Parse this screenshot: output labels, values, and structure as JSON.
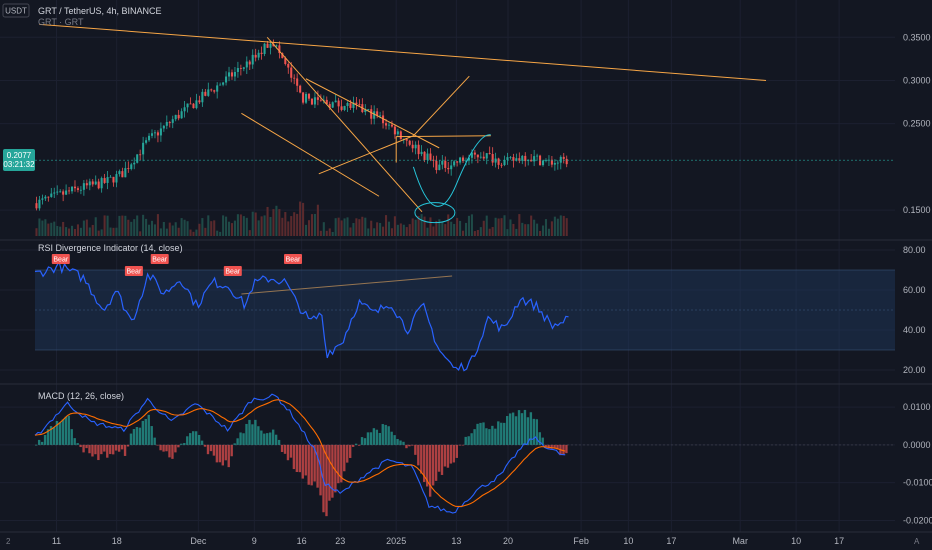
{
  "header": {
    "currency": "USDT",
    "symbol_line": "GRT / TetherUS, 4h, BINANCE",
    "sub_line": "GRT · GRT"
  },
  "price_tag": {
    "price": "0.2077",
    "countdown": "03:21:32"
  },
  "corner": {
    "left": "2",
    "right": "A"
  },
  "colors": {
    "background": "#131722",
    "up": "#26a69a",
    "down": "#ef5350",
    "rsi_line": "#2962ff",
    "band_fill": "#1e3a5f",
    "trendline": "#f7a646",
    "drawing": "#26c6da",
    "macd_line": "#2962ff",
    "signal_line": "#ff6d00"
  },
  "chart_data": [
    {
      "type": "candlestick",
      "title": "GRT / TetherUS, 4h, BINANCE",
      "ylim": [
        0.12,
        0.37
      ],
      "yticks": [
        "0.3500",
        "0.3000",
        "0.2500",
        "0.1500"
      ],
      "ytick_values": [
        0.35,
        0.3,
        0.25,
        0.15
      ],
      "x_labels": [
        "11",
        "18",
        "Dec",
        "9",
        "16",
        "23",
        "2025",
        "13",
        "20",
        "Feb",
        "10",
        "17",
        "Mar",
        "10",
        "17"
      ],
      "x_label_positions": [
        0.025,
        0.095,
        0.19,
        0.255,
        0.31,
        0.355,
        0.42,
        0.49,
        0.55,
        0.635,
        0.69,
        0.74,
        0.82,
        0.885,
        0.935
      ],
      "last_price": 0.2077,
      "price_anchors": [
        [
          0,
          0.158
        ],
        [
          0.02,
          0.165
        ],
        [
          0.05,
          0.175
        ],
        [
          0.08,
          0.182
        ],
        [
          0.1,
          0.192
        ],
        [
          0.13,
          0.23
        ],
        [
          0.16,
          0.255
        ],
        [
          0.19,
          0.278
        ],
        [
          0.22,
          0.3
        ],
        [
          0.24,
          0.315
        ],
        [
          0.26,
          0.33
        ],
        [
          0.275,
          0.348
        ],
        [
          0.29,
          0.32
        ],
        [
          0.31,
          0.28
        ],
        [
          0.34,
          0.274
        ],
        [
          0.37,
          0.27
        ],
        [
          0.4,
          0.258
        ],
        [
          0.44,
          0.225
        ],
        [
          0.47,
          0.2
        ],
        [
          0.5,
          0.208
        ],
        [
          0.52,
          0.215
        ],
        [
          0.55,
          0.205
        ],
        [
          0.57,
          0.213
        ],
        [
          0.6,
          0.205
        ],
        [
          0.62,
          0.207
        ]
      ],
      "candle_count": 180
    },
    {
      "type": "line",
      "title": "RSI Divergence Indicator (14, close)",
      "ylim": [
        15,
        82
      ],
      "yticks": [
        "80.00",
        "60.00",
        "40.00",
        "20.00"
      ],
      "ytick_values": [
        80,
        60,
        40,
        20
      ],
      "band": [
        30,
        70
      ],
      "mid": 50,
      "rsi_anchors": [
        [
          0,
          68
        ],
        [
          0.03,
          72
        ],
        [
          0.06,
          66
        ],
        [
          0.085,
          50
        ],
        [
          0.1,
          60
        ],
        [
          0.12,
          44
        ],
        [
          0.14,
          68
        ],
        [
          0.16,
          58
        ],
        [
          0.18,
          66
        ],
        [
          0.2,
          52
        ],
        [
          0.22,
          64
        ],
        [
          0.24,
          62
        ],
        [
          0.26,
          52
        ],
        [
          0.27,
          63
        ],
        [
          0.29,
          66
        ],
        [
          0.31,
          64
        ],
        [
          0.32,
          56
        ],
        [
          0.34,
          44
        ],
        [
          0.355,
          48
        ],
        [
          0.36,
          28
        ],
        [
          0.38,
          34
        ],
        [
          0.4,
          54
        ],
        [
          0.42,
          48
        ],
        [
          0.44,
          54
        ],
        [
          0.46,
          40
        ],
        [
          0.48,
          52
        ],
        [
          0.5,
          30
        ],
        [
          0.52,
          20
        ],
        [
          0.54,
          24
        ],
        [
          0.56,
          46
        ],
        [
          0.58,
          40
        ],
        [
          0.6,
          56
        ],
        [
          0.62,
          52
        ],
        [
          0.64,
          42
        ],
        [
          0.66,
          45
        ]
      ],
      "divergence_labels": [
        "Bear",
        "Bear",
        "Bear",
        "Bear",
        "Bear"
      ],
      "divergence_x": [
        0.03,
        0.115,
        0.145,
        0.23,
        0.3
      ]
    },
    {
      "type": "bar+line",
      "title": "MACD (12, 26, close)",
      "ylim": [
        -0.022,
        0.014
      ],
      "yticks": [
        "0.0100",
        "0.0000",
        "-0.0100",
        "-0.0200"
      ],
      "ytick_values": [
        0.01,
        0.0,
        -0.01,
        -0.02
      ],
      "macd_anchors": [
        [
          0,
          0.002
        ],
        [
          0.04,
          0.011
        ],
        [
          0.07,
          0.006
        ],
        [
          0.11,
          0.004
        ],
        [
          0.14,
          0.012
        ],
        [
          0.17,
          0.006
        ],
        [
          0.2,
          0.011
        ],
        [
          0.24,
          0.004
        ],
        [
          0.27,
          0.012
        ],
        [
          0.3,
          0.013
        ],
        [
          0.32,
          0.008
        ],
        [
          0.35,
          -0.002
        ],
        [
          0.36,
          -0.01
        ],
        [
          0.38,
          -0.013
        ],
        [
          0.41,
          -0.008
        ],
        [
          0.44,
          -0.004
        ],
        [
          0.47,
          -0.006
        ],
        [
          0.49,
          -0.016
        ],
        [
          0.52,
          -0.018
        ],
        [
          0.55,
          -0.012
        ],
        [
          0.58,
          -0.008
        ],
        [
          0.6,
          -0.002
        ],
        [
          0.62,
          0.002
        ],
        [
          0.64,
          -0.001
        ],
        [
          0.66,
          -0.003
        ]
      ]
    }
  ]
}
